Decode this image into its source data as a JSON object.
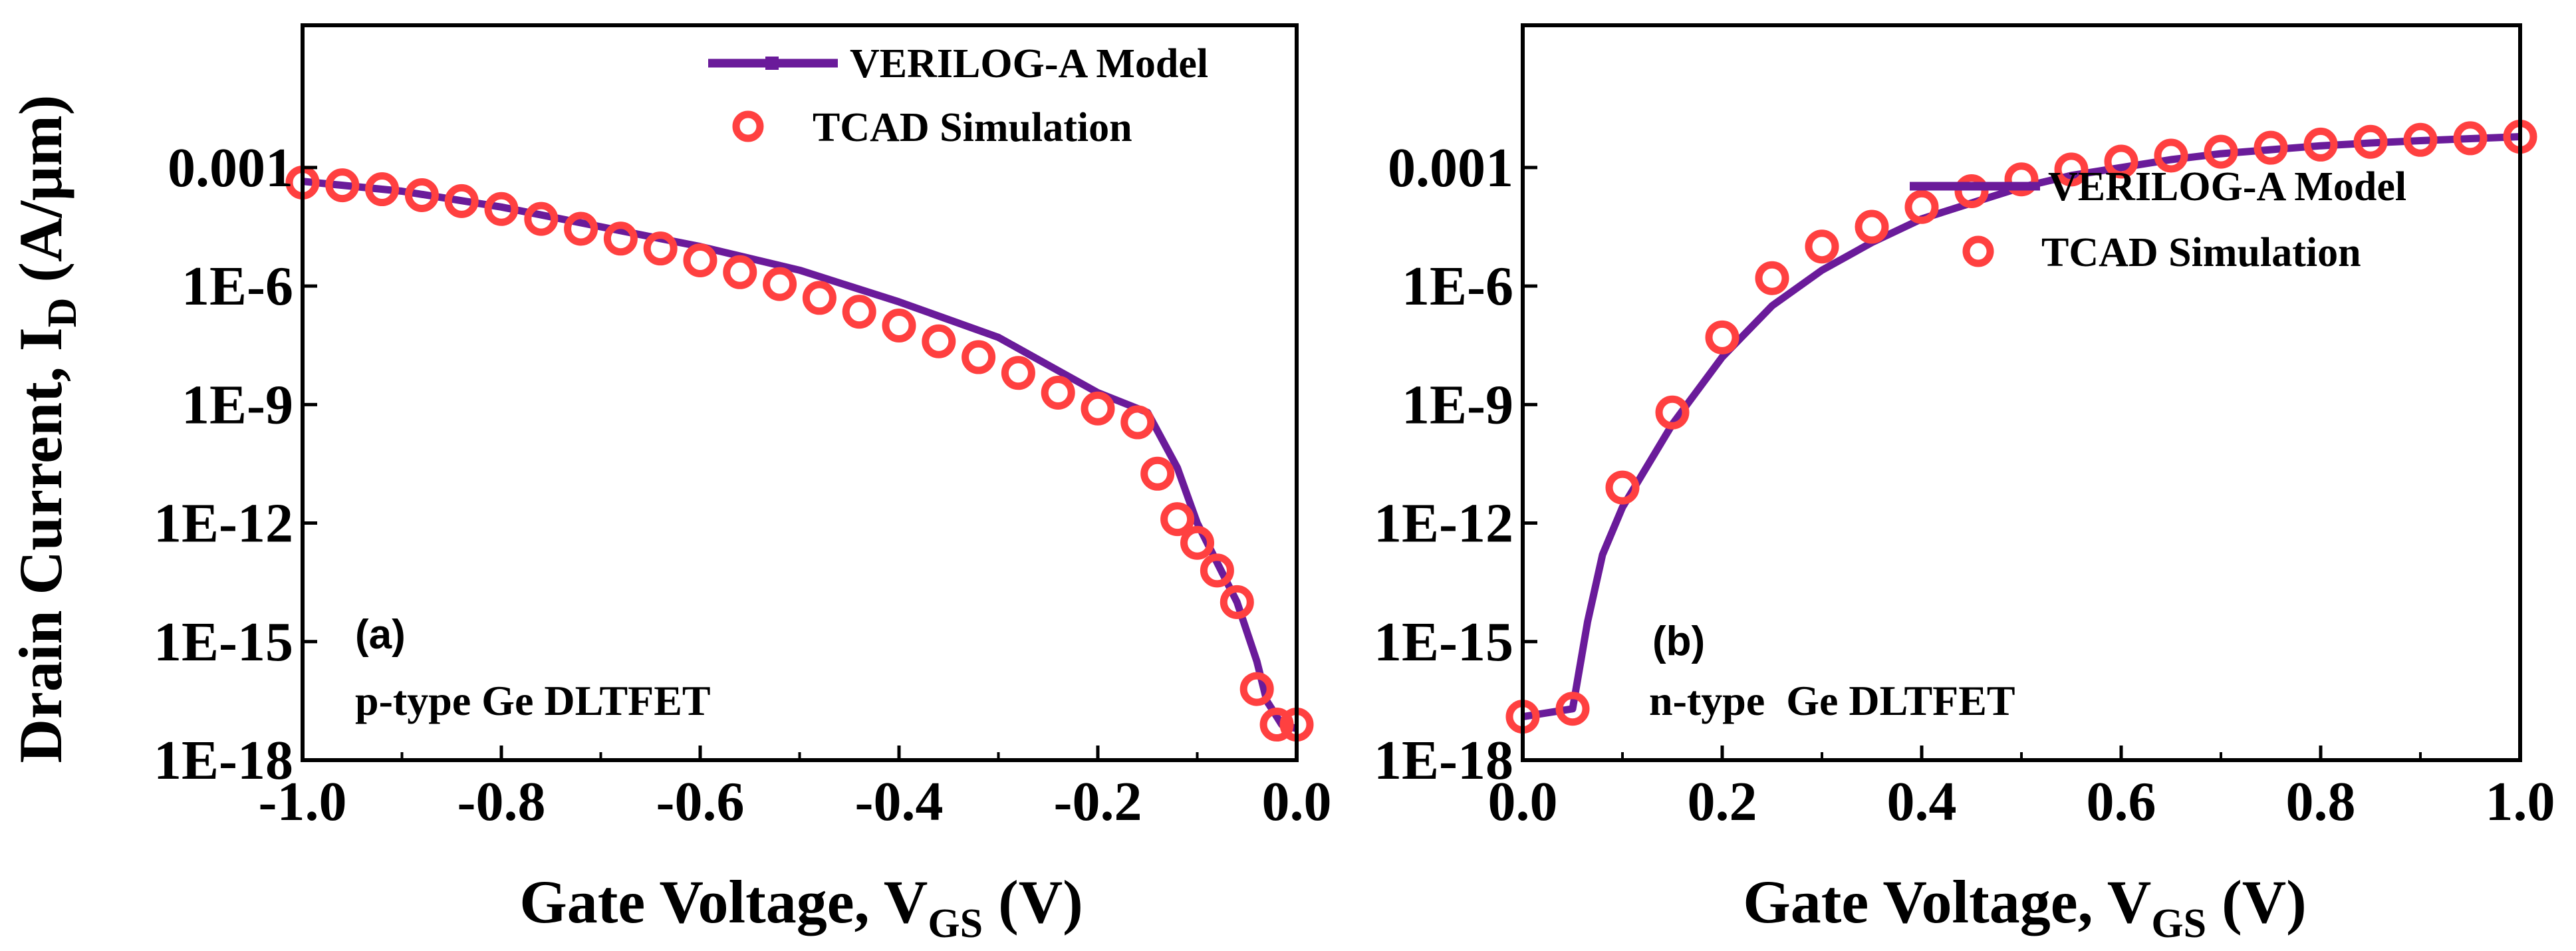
{
  "figure": {
    "ylabel_main": "Drain Current, I",
    "ylabel_sub": "D",
    "ylabel_unit": " (A/μm)"
  },
  "chart_data": [
    {
      "type": "line",
      "panel": "(a)",
      "annotation": "p-type Ge DLTFET",
      "xlabel_main": "Gate Voltage, V",
      "xlabel_sub": "GS",
      "xlabel_unit": " (V)",
      "xlim": [
        -1.0,
        0.0
      ],
      "ylim_log10": [
        -18,
        0.6
      ],
      "yscale": "log",
      "xticks": [
        -1.0,
        -0.8,
        -0.6,
        -0.4,
        -0.2,
        0.0
      ],
      "xtick_labels": [
        "-1.0",
        "-0.8",
        "-0.6",
        "-0.4",
        "-0.2",
        "0.0"
      ],
      "yticks_log10": [
        -3,
        -6,
        -9,
        -12,
        -15,
        -18
      ],
      "ytick_labels": [
        "0.001",
        "1E-6",
        "1E-9",
        "1E-12",
        "1E-15",
        "1E-18"
      ],
      "legend_position": "top-right",
      "series": [
        {
          "name": "VERILOG-A Model",
          "style": "line-with-square-markers",
          "color": "#6a1b9a",
          "x": [
            -1.0,
            -0.9,
            -0.8,
            -0.7,
            -0.6,
            -0.5,
            -0.4,
            -0.3,
            -0.25,
            -0.2,
            -0.15,
            -0.12,
            -0.1,
            -0.08,
            -0.06,
            -0.04,
            -0.03,
            -0.015,
            0.0
          ],
          "y_log10": [
            -3.35,
            -3.6,
            -4.0,
            -4.5,
            -5.0,
            -5.6,
            -6.4,
            -7.3,
            -8.0,
            -8.7,
            -9.2,
            -10.6,
            -12.0,
            -13.0,
            -14.0,
            -15.5,
            -16.5,
            -17.1,
            -17.2
          ]
        },
        {
          "name": "TCAD Simulation",
          "style": "open-circle-markers",
          "color": "#ff4040",
          "x": [
            -1.0,
            -0.96,
            -0.92,
            -0.88,
            -0.84,
            -0.8,
            -0.76,
            -0.72,
            -0.68,
            -0.64,
            -0.6,
            -0.56,
            -0.52,
            -0.48,
            -0.44,
            -0.4,
            -0.36,
            -0.32,
            -0.28,
            -0.24,
            -0.2,
            -0.16,
            -0.14,
            -0.12,
            -0.1,
            -0.08,
            -0.06,
            -0.04,
            -0.02,
            0.0
          ],
          "y_log10": [
            -3.38,
            -3.45,
            -3.55,
            -3.7,
            -3.85,
            -4.05,
            -4.3,
            -4.55,
            -4.8,
            -5.05,
            -5.35,
            -5.65,
            -5.95,
            -6.3,
            -6.65,
            -7.0,
            -7.4,
            -7.8,
            -8.2,
            -8.7,
            -9.1,
            -9.45,
            -10.75,
            -11.9,
            -12.5,
            -13.2,
            -14.0,
            -16.2,
            -17.1,
            -17.1
          ]
        }
      ]
    },
    {
      "type": "line",
      "panel": "(b)",
      "annotation": "n-type  Ge DLTFET",
      "xlabel_main": "Gate Voltage, V",
      "xlabel_sub": "GS",
      "xlabel_unit": " (V)",
      "xlim": [
        0.0,
        1.0
      ],
      "ylim_log10": [
        -18,
        0.6
      ],
      "yscale": "log",
      "xticks": [
        0.0,
        0.2,
        0.4,
        0.6,
        0.8,
        1.0
      ],
      "xtick_labels": [
        "0.0",
        "0.2",
        "0.4",
        "0.6",
        "0.8",
        "1.0"
      ],
      "yticks_log10": [
        -3,
        -6,
        -9,
        -12,
        -15,
        -18
      ],
      "ytick_labels": [
        "0.001",
        "1E-6",
        "1E-9",
        "1E-12",
        "1E-15",
        "1E-18"
      ],
      "legend_position": "middle-right",
      "series": [
        {
          "name": "VERILOG-A Model",
          "style": "line",
          "color": "#6a1b9a",
          "x": [
            0.0,
            0.05,
            0.065,
            0.08,
            0.1,
            0.15,
            0.2,
            0.25,
            0.3,
            0.35,
            0.4,
            0.45,
            0.5,
            0.55,
            0.6,
            0.65,
            0.7,
            0.75,
            0.8,
            0.85,
            0.9,
            0.95,
            1.0
          ],
          "y_log10": [
            -16.9,
            -16.7,
            -14.5,
            -12.8,
            -11.6,
            -9.5,
            -7.8,
            -6.5,
            -5.6,
            -4.9,
            -4.3,
            -3.9,
            -3.5,
            -3.2,
            -3.0,
            -2.8,
            -2.65,
            -2.55,
            -2.45,
            -2.38,
            -2.32,
            -2.27,
            -2.22
          ]
        },
        {
          "name": "TCAD Simulation",
          "style": "open-circle-markers",
          "color": "#ff4040",
          "x": [
            0.0,
            0.05,
            0.1,
            0.15,
            0.2,
            0.25,
            0.3,
            0.35,
            0.4,
            0.45,
            0.5,
            0.55,
            0.6,
            0.65,
            0.7,
            0.75,
            0.8,
            0.85,
            0.9,
            0.95,
            1.0
          ],
          "y_log10": [
            -16.9,
            -16.7,
            -11.1,
            -9.2,
            -7.3,
            -5.8,
            -5.0,
            -4.5,
            -4.0,
            -3.6,
            -3.3,
            -3.05,
            -2.85,
            -2.7,
            -2.6,
            -2.5,
            -2.42,
            -2.35,
            -2.3,
            -2.26,
            -2.22
          ]
        }
      ]
    }
  ]
}
